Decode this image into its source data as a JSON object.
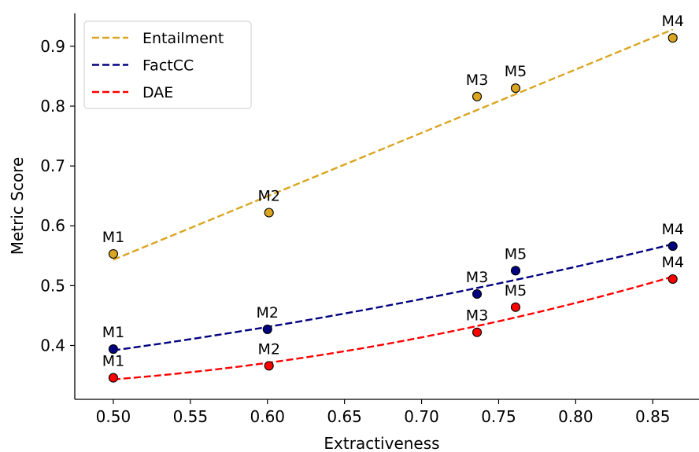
{
  "chart_data": {
    "type": "scatter",
    "title": "",
    "xlabel": "Extractiveness",
    "ylabel": "Metric Score",
    "xlim": [
      0.475,
      0.88
    ],
    "ylim": [
      0.31,
      0.955
    ],
    "xticks": [
      0.5,
      0.55,
      0.6,
      0.65,
      0.7,
      0.75,
      0.8,
      0.85
    ],
    "xtick_labels": [
      "0.50",
      "0.55",
      "0.60",
      "0.65",
      "0.70",
      "0.75",
      "0.80",
      "0.85"
    ],
    "yticks": [
      0.4,
      0.5,
      0.6,
      0.7,
      0.8,
      0.9
    ],
    "ytick_labels": [
      "0.4",
      "0.5",
      "0.6",
      "0.7",
      "0.8",
      "0.9"
    ],
    "grid": false,
    "legend_position": "top-left",
    "series": [
      {
        "name": "Entailment",
        "color": "#DAA520",
        "trend": "linear",
        "points": [
          {
            "label": "M1",
            "x": 0.5,
            "y": 0.553
          },
          {
            "label": "M2",
            "x": 0.601,
            "y": 0.622
          },
          {
            "label": "M3",
            "x": 0.736,
            "y": 0.816
          },
          {
            "label": "M5",
            "x": 0.761,
            "y": 0.83
          },
          {
            "label": "M4",
            "x": 0.863,
            "y": 0.914
          }
        ]
      },
      {
        "name": "FactCC",
        "color": "#000080",
        "trend": "quadratic",
        "points": [
          {
            "label": "M1",
            "x": 0.5,
            "y": 0.394
          },
          {
            "label": "M2",
            "x": 0.6,
            "y": 0.427
          },
          {
            "label": "M3",
            "x": 0.736,
            "y": 0.486
          },
          {
            "label": "M5",
            "x": 0.761,
            "y": 0.525
          },
          {
            "label": "M4",
            "x": 0.863,
            "y": 0.566
          }
        ]
      },
      {
        "name": "DAE",
        "color": "#FF0000",
        "trend": "quadratic",
        "points": [
          {
            "label": "M1",
            "x": 0.5,
            "y": 0.346
          },
          {
            "label": "M2",
            "x": 0.601,
            "y": 0.366
          },
          {
            "label": "M3",
            "x": 0.736,
            "y": 0.422
          },
          {
            "label": "M5",
            "x": 0.761,
            "y": 0.464
          },
          {
            "label": "M4",
            "x": 0.863,
            "y": 0.511
          }
        ]
      }
    ]
  }
}
